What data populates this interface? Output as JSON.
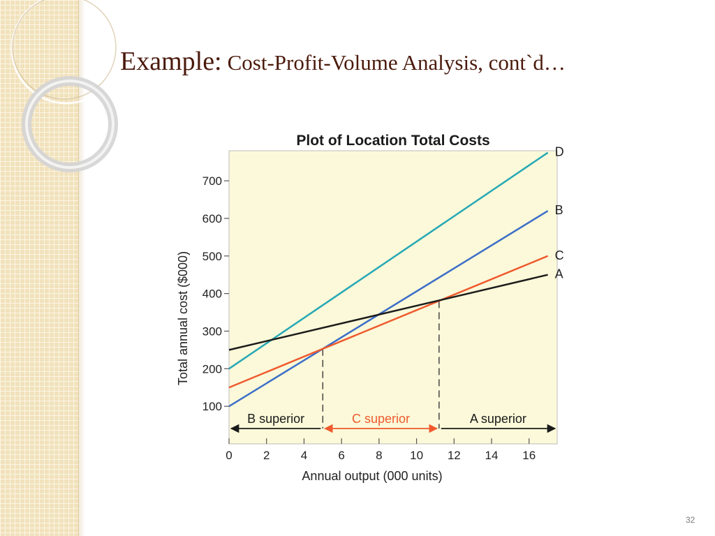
{
  "slide": {
    "title_main": "Example:",
    "title_sub": "Cost-Profit-Volume Analysis, cont`d…",
    "page_number": "32"
  },
  "chart_data": {
    "type": "line",
    "title": "Plot of Location Total Costs",
    "xlabel": "Annual output (000 units)",
    "ylabel": "Total annual cost ($000)",
    "xlim": [
      0,
      17.5
    ],
    "ylim": [
      0,
      780
    ],
    "x_ticks": [
      0,
      2,
      4,
      6,
      8,
      10,
      12,
      14,
      16
    ],
    "y_ticks": [
      100,
      200,
      300,
      400,
      500,
      600,
      700
    ],
    "grid": false,
    "series": [
      {
        "name": "D",
        "color": "#27a8b6",
        "points": [
          [
            0,
            200
          ],
          [
            17,
            775
          ]
        ]
      },
      {
        "name": "B",
        "color": "#3d6ec8",
        "points": [
          [
            0,
            100
          ],
          [
            17,
            620
          ]
        ]
      },
      {
        "name": "C",
        "color": "#ef5a2e",
        "points": [
          [
            0,
            150
          ],
          [
            17,
            500
          ]
        ]
      },
      {
        "name": "A",
        "color": "#1c1c1c",
        "points": [
          [
            0,
            250
          ],
          [
            17,
            450
          ]
        ]
      }
    ],
    "reference_lines": [
      {
        "x": 5,
        "y_to": 253
      },
      {
        "x": 11.2,
        "y_to": 380
      }
    ],
    "regions": [
      {
        "label": "B superior",
        "from": 0,
        "to": 5,
        "color": "#1a1a1a"
      },
      {
        "label": "C superior",
        "from": 5,
        "to": 11.2,
        "color": "#ef5a2e"
      },
      {
        "label": "A superior",
        "from": 11.2,
        "to": 17.5,
        "color": "#1a1a1a"
      }
    ],
    "plot_background": "#fbf9d9"
  }
}
